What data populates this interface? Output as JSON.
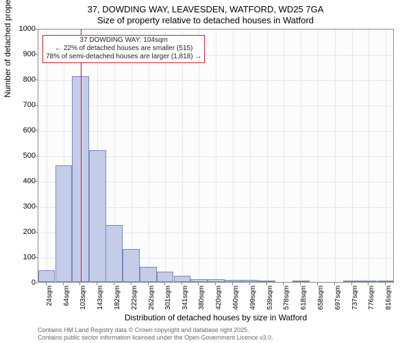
{
  "title_line1": "37, DOWDING WAY, LEAVESDEN, WATFORD, WD25 7GA",
  "title_line2": "Size of property relative to detached houses in Watford",
  "ylabel": "Number of detached properties",
  "xlabel": "Distribution of detached houses by size in Watford",
  "footer1": "Contains HM Land Registry data © Crown copyright and database right 2025.",
  "footer2": "Contains public sector information licensed under the Open Government Licence v3.0.",
  "chart": {
    "type": "histogram",
    "background_color": "#fcfcfd",
    "grid_color": "#e6e6ee",
    "border_color": "#888888",
    "bar_fill": "#c3cce8",
    "bar_border": "#7a87b8",
    "marker_color": "#cc2222",
    "marker_x": 104,
    "callout_line1": "37 DOWDING WAY: 104sqm",
    "callout_line2": "← 22% of detached houses are smaller (515)",
    "callout_line3": "78% of semi-detached houses are larger (1,818) →",
    "xlim": [
      5,
      837
    ],
    "ylim": [
      0,
      1000
    ],
    "yticks": [
      0,
      100,
      200,
      300,
      400,
      500,
      600,
      700,
      800,
      900,
      1000
    ],
    "xticks": [
      24,
      64,
      103,
      143,
      182,
      222,
      262,
      301,
      341,
      380,
      420,
      460,
      499,
      539,
      578,
      618,
      658,
      697,
      737,
      776,
      816
    ],
    "xtick_labels": [
      "24sqm",
      "64sqm",
      "103sqm",
      "143sqm",
      "182sqm",
      "222sqm",
      "262sqm",
      "301sqm",
      "341sqm",
      "380sqm",
      "420sqm",
      "460sqm",
      "499sqm",
      "539sqm",
      "578sqm",
      "618sqm",
      "658sqm",
      "697sqm",
      "737sqm",
      "776sqm",
      "816sqm"
    ],
    "values": [
      45,
      460,
      810,
      520,
      225,
      130,
      60,
      40,
      25,
      12,
      10,
      8,
      8,
      5,
      0,
      3,
      0,
      0,
      2,
      2,
      2
    ],
    "bar_width_data": 39.6,
    "tick_fontsize": 10,
    "label_fontsize": 12,
    "title_fontsize": 13
  }
}
